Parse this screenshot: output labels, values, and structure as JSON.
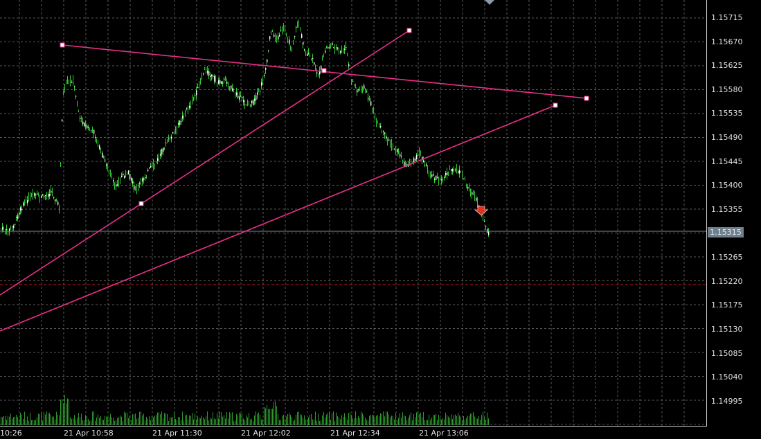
{
  "price_axis": {
    "labels": [
      "1.15715",
      "1.15670",
      "1.15625",
      "1.15580",
      "1.15535",
      "1.15490",
      "1.15445",
      "1.15400",
      "1.15355",
      "1.15265",
      "1.15220",
      "1.15175",
      "1.15130",
      "1.15085",
      "1.15040",
      "1.14995"
    ],
    "current_price": "1.15315"
  },
  "time_axis": {
    "labels": [
      "10:26",
      "21 Apr 10:58",
      "21 Apr 11:30",
      "21 Apr 12:02",
      "21 Apr 12:34",
      "21 Apr 13:06"
    ]
  },
  "colors": {
    "background": "#000000",
    "grid": "#5a5a5a",
    "candles": "#32cd32",
    "volume": "#2e9b2e",
    "trendlines": "#e9308a",
    "stop_level": "#c8141e",
    "current_price_line": "#7a8a99",
    "current_price_tag": "#6e7f8e"
  },
  "icons": {
    "sell_arrow": "red-down-arrow-icon",
    "scroll_marker": "gray-triangle-icon"
  }
}
